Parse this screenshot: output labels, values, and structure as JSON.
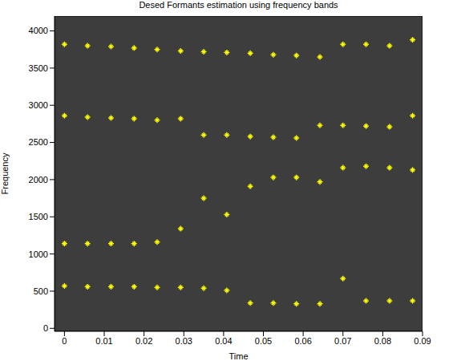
{
  "chart_data": {
    "type": "scatter",
    "title": "Desed Formants estimation using frequency bands",
    "x_label": "Time",
    "y_label": "Frequency",
    "x": [
      0,
      0.0058,
      0.0117,
      0.0175,
      0.0233,
      0.0292,
      0.035,
      0.0408,
      0.0467,
      0.0525,
      0.0583,
      0.0642,
      0.07,
      0.0758,
      0.0817,
      0.0875
    ],
    "series": [
      {
        "color": "#ffff00",
        "marker": "star",
        "values": [
          3820,
          3800,
          3790,
          3770,
          3750,
          3730,
          3720,
          3710,
          3700,
          3680,
          3670,
          3650,
          3820,
          3820,
          3800,
          3880
        ]
      },
      {
        "color": "#ffff00",
        "marker": "star",
        "values": [
          2860,
          2840,
          2830,
          2820,
          2800,
          2820,
          2600,
          2600,
          2580,
          2570,
          2560,
          2730,
          2730,
          2720,
          2710,
          2860
        ]
      },
      {
        "color": "#ffff00",
        "marker": "star",
        "values": [
          1140,
          1140,
          1140,
          1140,
          1160,
          1340,
          1750,
          1530,
          1910,
          2030,
          2030,
          1970,
          2160,
          2180,
          2160,
          2130
        ]
      },
      {
        "color": "#ffff00",
        "marker": "star",
        "values": [
          570,
          560,
          560,
          560,
          550,
          550,
          540,
          510,
          340,
          340,
          330,
          330,
          670,
          370,
          370,
          370
        ]
      }
    ],
    "xlim": [
      -0.0025,
      0.09
    ],
    "ylim": [
      -40,
      4200
    ],
    "xticks": [
      0,
      0.01,
      0.02,
      0.03,
      0.04,
      0.05,
      0.06,
      0.07,
      0.08,
      0.09
    ],
    "yticks": [
      0,
      500,
      1000,
      1500,
      2000,
      2500,
      3000,
      3500,
      4000
    ],
    "grid": false
  }
}
